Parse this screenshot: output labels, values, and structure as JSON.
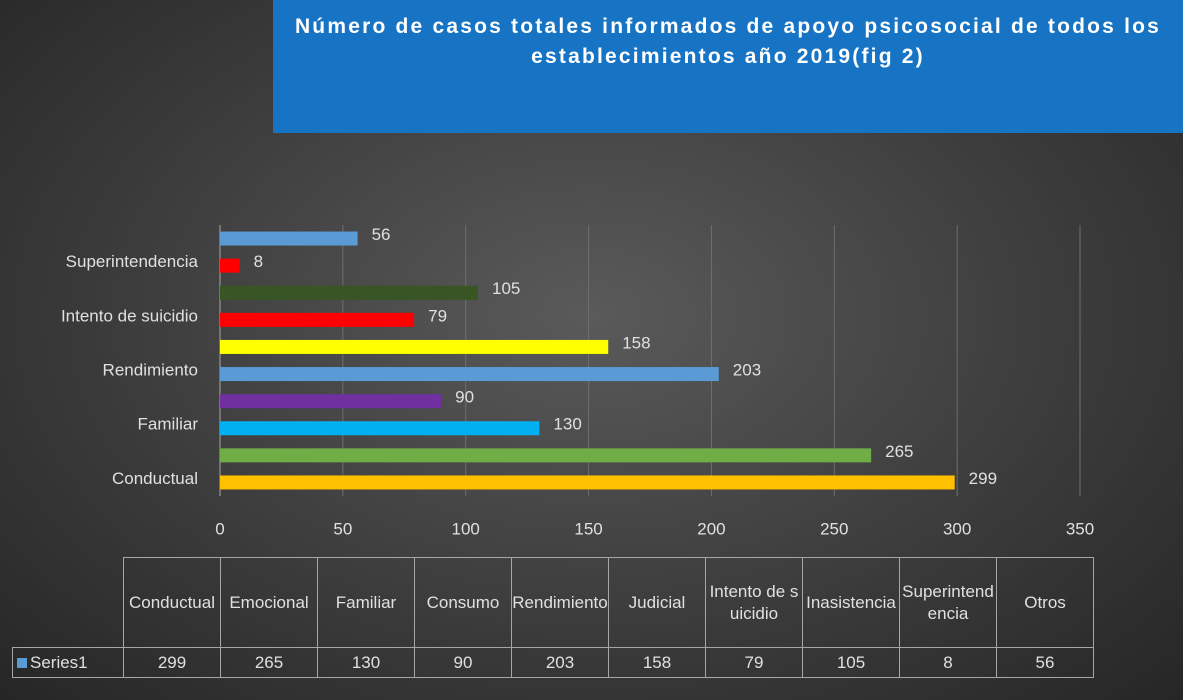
{
  "chart_data": {
    "type": "bar",
    "orientation": "horizontal",
    "title": "Número de casos totales informados de apoyo psicosocial de todos los establecimientos año 2019(fig 2)",
    "categories": [
      "Conductual",
      "Emocional",
      "Familiar",
      "Consumo",
      "Rendimiento",
      "Judicial",
      "Intento de suicidio",
      "Inasistencia",
      "Superintendencia",
      "Otros"
    ],
    "series": [
      {
        "name": "Series1",
        "color": "#5B9BD5",
        "values": [
          299,
          265,
          130,
          90,
          203,
          158,
          79,
          105,
          8,
          56
        ]
      }
    ],
    "colors": [
      "#FFC000",
      "#70AD47",
      "#00B0F0",
      "#7030A0",
      "#5B9BD5",
      "#FFFF00",
      "#FF0000",
      "#375623",
      "#FF0000",
      "#5B9BD5"
    ],
    "xlim": [
      0,
      350
    ],
    "xticks": [
      0,
      50,
      100,
      150,
      200,
      250,
      300,
      350
    ],
    "grid": true,
    "data_table": true
  }
}
